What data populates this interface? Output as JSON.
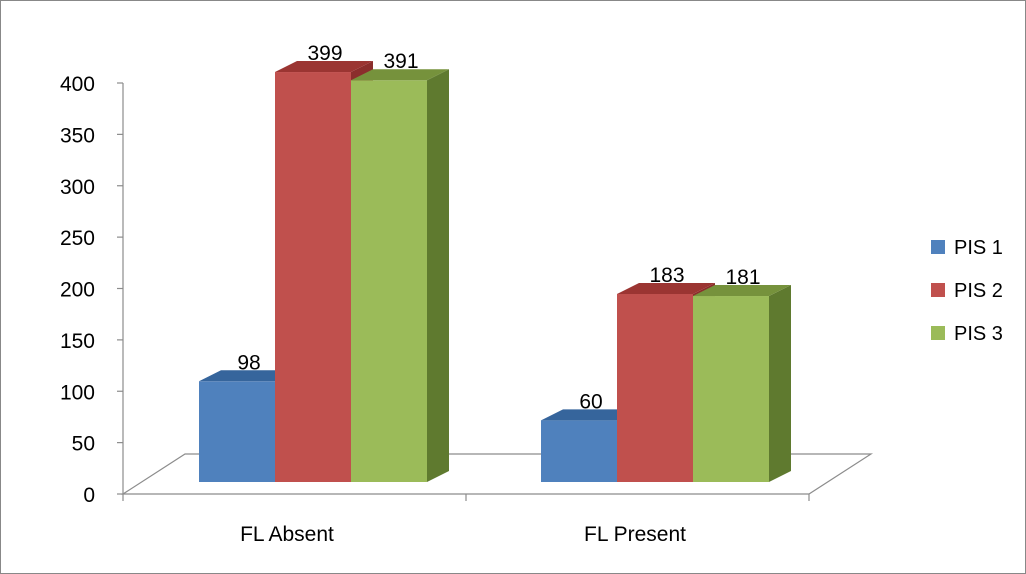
{
  "chart_data": {
    "type": "bar",
    "title": "",
    "xlabel": "",
    "ylabel": "",
    "categories": [
      "FL Absent",
      "FL Present"
    ],
    "series": [
      {
        "name": "PIS 1",
        "values": [
          98,
          60
        ],
        "color": "#4F81BD",
        "side_color": "#2E5B8E",
        "top_color": "#36659C"
      },
      {
        "name": "PIS 2",
        "values": [
          399,
          183
        ],
        "color": "#C0504D",
        "side_color": "#8B2E2C",
        "top_color": "#9B3532"
      },
      {
        "name": "PIS 3",
        "values": [
          391,
          181
        ],
        "color": "#9BBB59",
        "side_color": "#5F7A2F",
        "top_color": "#76923C"
      }
    ],
    "ylim": [
      0,
      400
    ],
    "yticks": [
      "0",
      "50",
      "100",
      "150",
      "200",
      "250",
      "300",
      "350",
      "400"
    ],
    "grid": false,
    "legend_position": "right",
    "style": "3d-clustered-column"
  }
}
